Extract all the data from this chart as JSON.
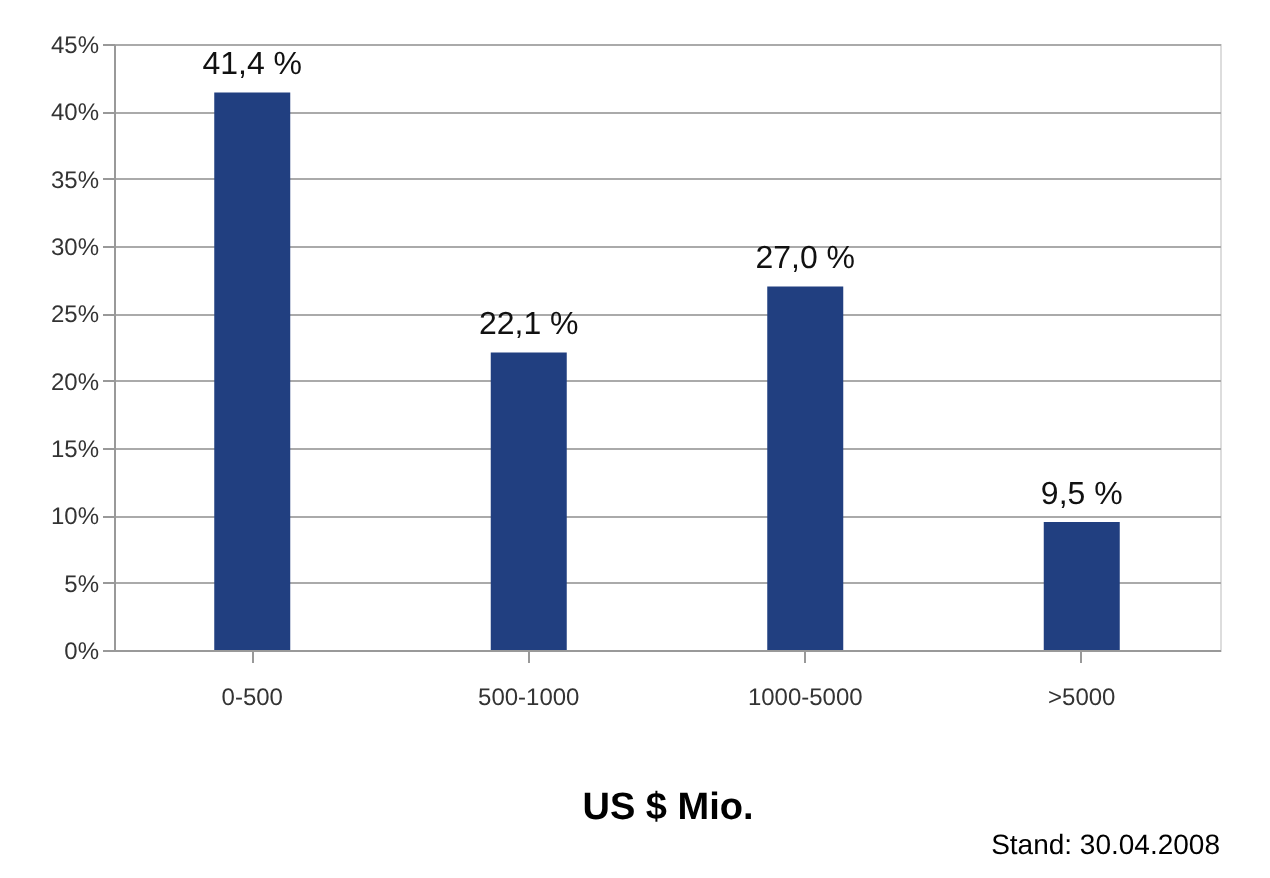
{
  "chart_data": {
    "type": "bar",
    "xlabel": "US $ Mio.",
    "categories": [
      "0-500",
      "500-1000",
      "1000-5000",
      ">5000"
    ],
    "values": [
      41.4,
      22.1,
      27.0,
      9.5
    ],
    "value_labels": [
      "41,4 %",
      "22,1 %",
      "27,0 %",
      "9,5 %"
    ],
    "color": "#213f80",
    "ylim": [
      0,
      45
    ],
    "yticks": [
      {
        "value": 0,
        "label": "0%"
      },
      {
        "value": 5,
        "label": "5%"
      },
      {
        "value": 10,
        "label": "10%"
      },
      {
        "value": 15,
        "label": "15%"
      },
      {
        "value": 20,
        "label": "20%"
      },
      {
        "value": 25,
        "label": "25%"
      },
      {
        "value": 30,
        "label": "30%"
      },
      {
        "value": 35,
        "label": "35%"
      },
      {
        "value": 40,
        "label": "40%"
      },
      {
        "value": 45,
        "label": "45%"
      }
    ],
    "grid": "y",
    "annotations": [
      "Stand: 30.04.2008"
    ]
  }
}
